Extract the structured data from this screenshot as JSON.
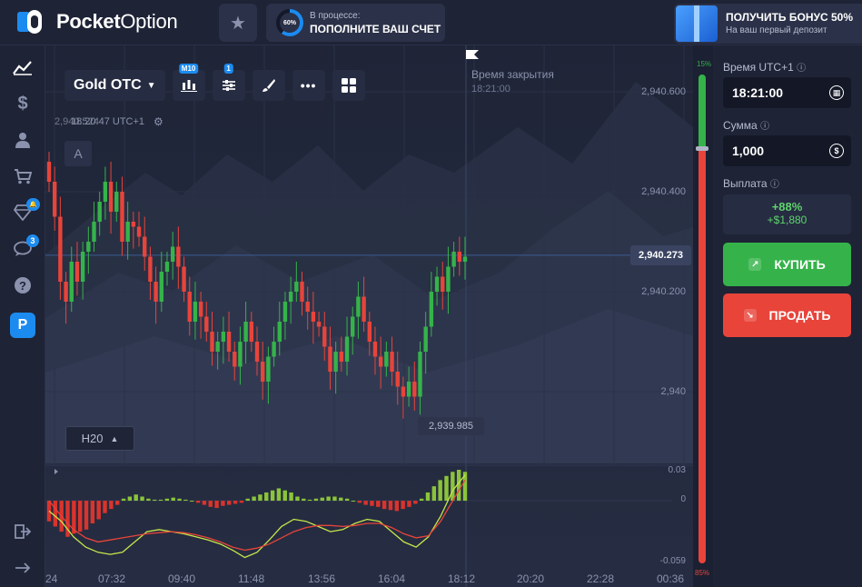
{
  "header": {
    "logo_bold": "Pocket",
    "logo_light": "Option",
    "progress_percent_label": "60%",
    "progress_fraction": 0.6,
    "progress_small": "В процессе:",
    "progress_big": "ПОПОЛНИТЕ ВАШ СЧЕТ",
    "bonus_title": "ПОЛУЧИТЬ БОНУС 50%",
    "bonus_sub": "На ваш первый депозит"
  },
  "sidebar": {
    "items": [
      {
        "icon": "chart-icon"
      },
      {
        "icon": "dollar-icon"
      },
      {
        "icon": "user-icon"
      },
      {
        "icon": "cart-icon"
      },
      {
        "icon": "diamond-icon",
        "badge": "🔔"
      },
      {
        "icon": "chat-icon",
        "badge": "3"
      },
      {
        "icon": "help-icon"
      },
      {
        "icon": "p-app-icon",
        "label": "P"
      }
    ],
    "bottom": [
      {
        "icon": "logout-icon"
      },
      {
        "icon": "arrow-right-icon"
      }
    ]
  },
  "toolbar": {
    "asset": "Gold OTC",
    "candles_tag": "M10",
    "indicators_tag": "1"
  },
  "chart_meta": {
    "time_readout": "18:20:47 UTC+1",
    "price_readout": "2,940.524",
    "a_label": "A",
    "expiry_label": "Время закрытия",
    "expiry_time": "18:21:00",
    "current_price": "2,940.273",
    "low_price": "2,939.985",
    "timeframe": "H20",
    "colors": {
      "up": "#35b34a",
      "down": "#e8443a",
      "signal_yellow": "#c8e64a",
      "signal_red": "#e8443a"
    }
  },
  "chart_data": {
    "type": "candlestick",
    "price_ticks": [
      "2,940.600",
      "2,940.400",
      "2,940.200",
      "2,940"
    ],
    "price_tick_values": [
      2940.6,
      2940.4,
      2940.2,
      2940.0
    ],
    "oscillator_ticks": [
      "0.03",
      "0",
      "-0.059"
    ],
    "oscillator_tick_values": [
      0.03,
      0,
      -0.059
    ],
    "time_ticks": [
      "24",
      "07:32",
      "09:40",
      "11:48",
      "13:56",
      "16:04",
      "18:12",
      "20:20",
      "22:28",
      "00:36"
    ],
    "candles_close": [
      2940.42,
      2940.35,
      2940.22,
      2940.18,
      2940.26,
      2940.22,
      2940.28,
      2940.3,
      2940.34,
      2940.38,
      2940.42,
      2940.36,
      2940.4,
      2940.3,
      2940.34,
      2940.33,
      2940.31,
      2940.27,
      2940.22,
      2940.18,
      2940.24,
      2940.26,
      2940.29,
      2940.25,
      2940.2,
      2940.14,
      2940.18,
      2940.15,
      2940.12,
      2940.08,
      2940.1,
      2940.12,
      2940.08,
      2940.05,
      2940.1,
      2940.14,
      2940.1,
      2940.06,
      2940.02,
      2940.07,
      2940.1,
      2940.14,
      2940.18,
      2940.2,
      2940.22,
      2940.18,
      2940.16,
      2940.14,
      2940.13,
      2940.09,
      2940.04,
      2940.08,
      2940.06,
      2940.11,
      2940.15,
      2940.19,
      2940.14,
      2940.1,
      2940.07,
      2940.05,
      2940.08,
      2940.04,
      2940.01,
      2939.99,
      2940.02,
      2939.99,
      2940.08,
      2940.13,
      2940.2,
      2940.23,
      2940.2,
      2940.25,
      2940.28,
      2940.26,
      2940.27
    ],
    "macd_histogram": [
      -0.02,
      -0.025,
      -0.03,
      -0.035,
      -0.032,
      -0.03,
      -0.028,
      -0.022,
      -0.018,
      -0.012,
      -0.008,
      -0.004,
      0.002,
      0.004,
      0.006,
      0.004,
      0.002,
      0.001,
      0.001,
      0.002,
      0.003,
      0.002,
      0.001,
      0,
      -0.002,
      -0.004,
      -0.006,
      -0.007,
      -0.005,
      -0.004,
      -0.003,
      -0.002,
      0.002,
      0.004,
      0.006,
      0.008,
      0.01,
      0.012,
      0.01,
      0.008,
      0.004,
      0.002,
      0.001,
      0.002,
      0.003,
      0.004,
      0.004,
      0.003,
      0.002,
      0,
      -0.002,
      -0.004,
      -0.005,
      -0.006,
      -0.008,
      -0.009,
      -0.01,
      -0.008,
      -0.006,
      -0.003,
      0.002,
      0.008,
      0.014,
      0.02,
      0.024,
      0.028,
      0.03,
      0.028
    ],
    "signal_line": [
      -0.01,
      -0.02,
      -0.035,
      -0.045,
      -0.05,
      -0.052,
      -0.05,
      -0.04,
      -0.03,
      -0.028,
      -0.03,
      -0.032,
      -0.035,
      -0.038,
      -0.042,
      -0.048,
      -0.055,
      -0.05,
      -0.038,
      -0.025,
      -0.018,
      -0.02,
      -0.025,
      -0.03,
      -0.028,
      -0.022,
      -0.018,
      -0.02,
      -0.03,
      -0.04,
      -0.045,
      -0.035,
      -0.015,
      0.01,
      0.025
    ],
    "ma_line": [
      0.0,
      -0.015,
      -0.028,
      -0.036,
      -0.04,
      -0.038,
      -0.036,
      -0.034,
      -0.032,
      -0.031,
      -0.03,
      -0.031,
      -0.033,
      -0.036,
      -0.04,
      -0.045,
      -0.048,
      -0.046,
      -0.042,
      -0.036,
      -0.03,
      -0.026,
      -0.024,
      -0.024,
      -0.025,
      -0.024,
      -0.022,
      -0.022,
      -0.026,
      -0.032,
      -0.036,
      -0.034,
      -0.02,
      0.0,
      0.02
    ]
  },
  "sentiment": {
    "top": "15%",
    "bottom": "85%",
    "up_fraction": 0.15
  },
  "panel": {
    "time_label": "Время UTC+1",
    "time_value": "18:21:00",
    "amount_label": "Сумма",
    "amount_value": "1,000",
    "payout_label": "Выплата",
    "payout_pct": "+88%",
    "payout_amount": "+$1,880",
    "buy": "КУПИТЬ",
    "sell": "ПРОДАТЬ"
  }
}
